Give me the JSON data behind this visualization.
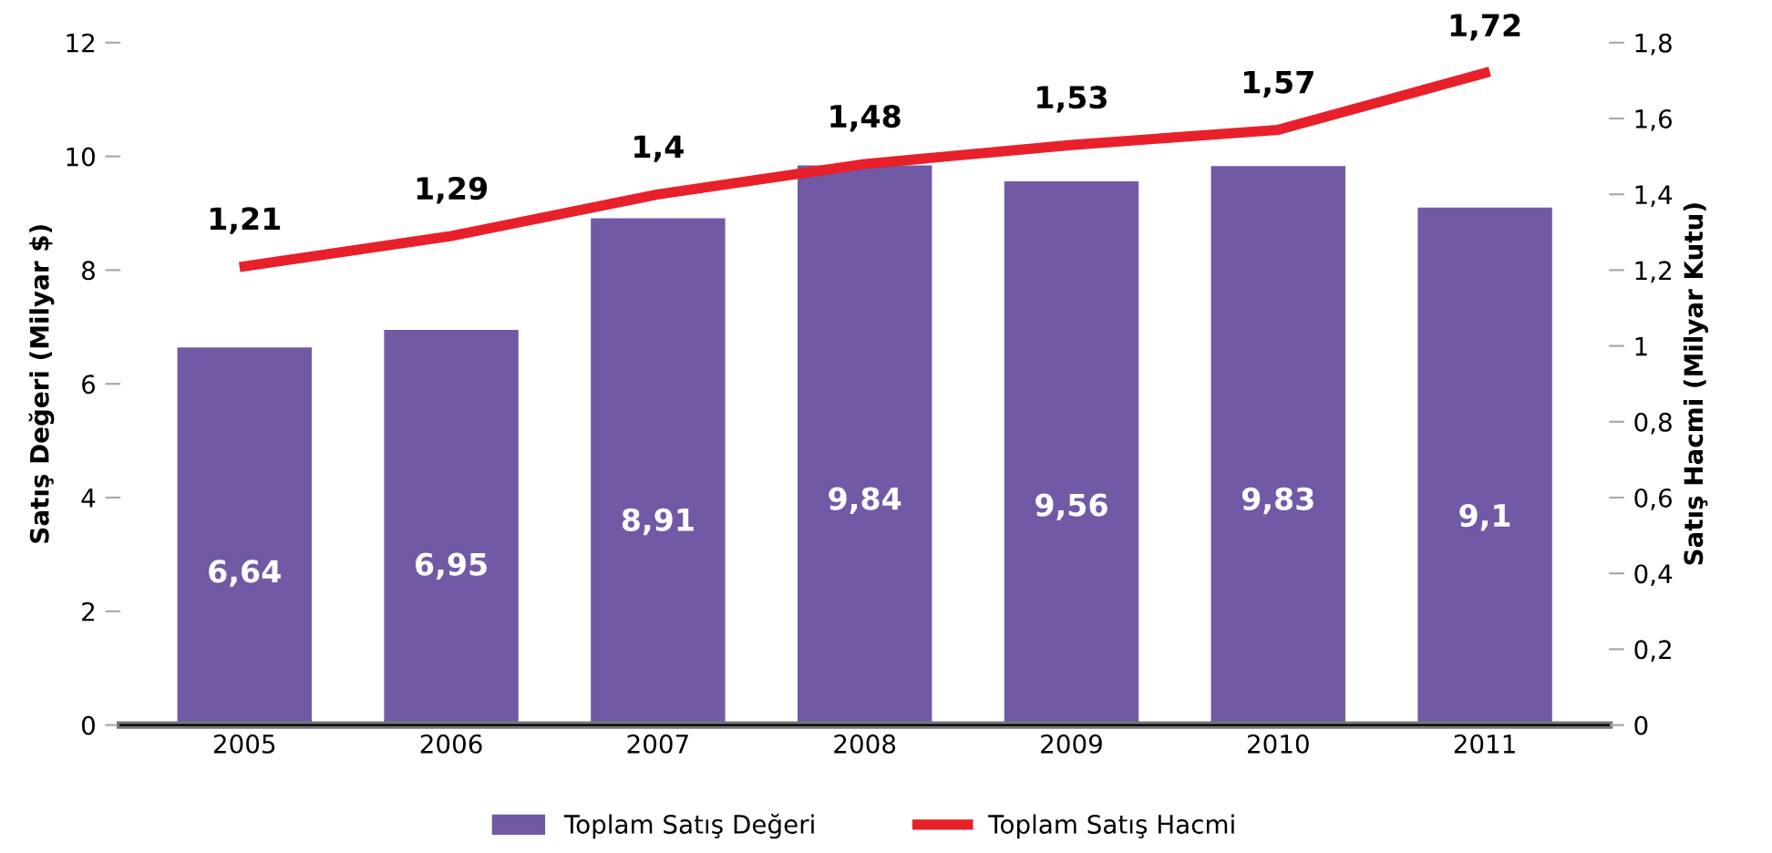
{
  "chart_data": {
    "type": "bar",
    "categories": [
      "2005",
      "2006",
      "2007",
      "2008",
      "2009",
      "2010",
      "2011"
    ],
    "ylabel": "Satış Değeri (Milyar $)",
    "y2label": "Satış Hacmi (Milyar Kutu)",
    "series": [
      {
        "name": "Toplam Satış Değeri",
        "color": "#7159a6",
        "values": [
          6.64,
          6.95,
          8.91,
          9.84,
          9.56,
          9.83,
          9.1
        ],
        "value_labels": [
          "6,64",
          "6,95",
          "8,91",
          "9,84",
          "9,56",
          "9,83",
          "9,1"
        ]
      },
      {
        "name": "Toplam Satış Hacmi",
        "type": "line",
        "axis": "y2",
        "color": "#e8202a",
        "values": [
          1.21,
          1.29,
          1.4,
          1.48,
          1.53,
          1.57,
          1.72
        ],
        "value_labels": [
          "1,21",
          "1,29",
          "1,4",
          "1,48",
          "1,53",
          "1,57",
          "1,72"
        ]
      }
    ],
    "ylim": [
      0,
      12
    ],
    "yticks": [
      0,
      2,
      4,
      6,
      8,
      10,
      12
    ],
    "y2lim": [
      0,
      1.8
    ],
    "y2ticks": [
      0,
      {
        "value": 0.2,
        "label": "0,2"
      },
      {
        "value": 0.4,
        "label": "0,4"
      },
      {
        "value": 0.6,
        "label": "0,6"
      },
      {
        "value": 0.8,
        "label": "0,8"
      },
      1,
      {
        "value": 1.2,
        "label": "1,2"
      },
      {
        "value": 1.4,
        "label": "1,4"
      },
      {
        "value": 1.6,
        "label": "1,6"
      },
      {
        "value": 1.8,
        "label": "1,8"
      }
    ],
    "grid": false,
    "legend": "bottom",
    "marker": "none",
    "line_style": "solid"
  }
}
